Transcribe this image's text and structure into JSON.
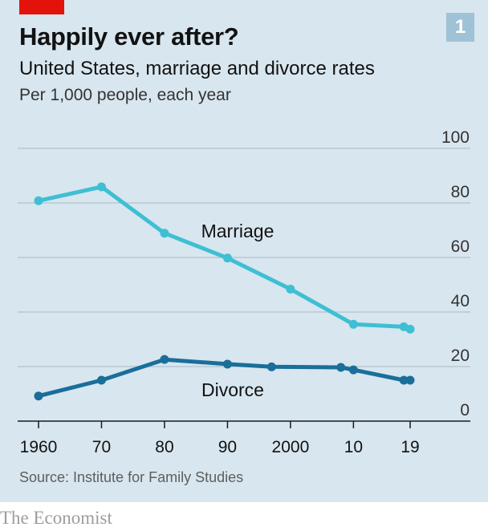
{
  "header": {
    "title": "Happily ever after?",
    "subtitle": "United States, marriage and divorce rates",
    "unit": "Per 1,000 people, each year",
    "badge": "1"
  },
  "footer": {
    "source": "Source: Institute for Family Studies",
    "brand": "The Economist"
  },
  "colors": {
    "marriage": "#3ebfd3",
    "divorce": "#1a6e9a",
    "gridline": "#b7c7d1",
    "brand_red": "#e3120b",
    "background": "#d8e6ef"
  },
  "chart_data": {
    "type": "line",
    "title": "Happily ever after?",
    "xlabel": "",
    "ylabel": "",
    "xlim": [
      1960,
      2019
    ],
    "ylim": [
      0,
      100
    ],
    "yticks": [
      0,
      20,
      40,
      60,
      80,
      100
    ],
    "yaxis_position": "right",
    "grid": true,
    "xticks": [
      {
        "value": 1960,
        "label": "1960"
      },
      {
        "value": 1970,
        "label": "70"
      },
      {
        "value": 1980,
        "label": "80"
      },
      {
        "value": 1990,
        "label": "90"
      },
      {
        "value": 2000,
        "label": "2000"
      },
      {
        "value": 2010,
        "label": "10"
      },
      {
        "value": 2019,
        "label": "19"
      }
    ],
    "series": [
      {
        "name": "Marriage",
        "x": [
          1960,
          1970,
          1980,
          1990,
          2000,
          2010,
          2018,
          2019
        ],
        "y": [
          80.8,
          85.9,
          68.9,
          59.8,
          48.4,
          35.5,
          34.6,
          33.7
        ]
      },
      {
        "name": "Divorce",
        "x": [
          1960,
          1970,
          1980,
          1990,
          1997,
          2008,
          2010,
          2018,
          2019
        ],
        "y": [
          9.2,
          15.0,
          22.6,
          20.9,
          19.9,
          19.7,
          18.8,
          15.0,
          15.0
        ]
      }
    ]
  }
}
